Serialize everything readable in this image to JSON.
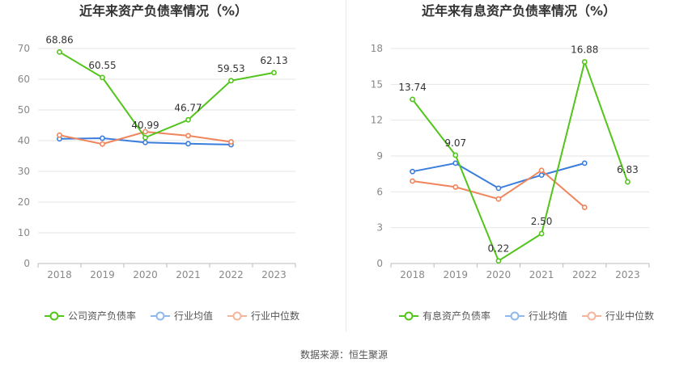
{
  "source": "数据来源：恒生聚源",
  "chart_data": [
    {
      "type": "line",
      "title": "近年来资产负债率情况（%）",
      "categories": [
        "2018",
        "2019",
        "2020",
        "2021",
        "2022",
        "2023"
      ],
      "ylim": [
        0,
        70
      ],
      "yticks": [
        0,
        10,
        20,
        30,
        40,
        50,
        60,
        70
      ],
      "grid": true,
      "legend_position": "bottom",
      "series": [
        {
          "name": "公司资产负债率",
          "color": "#52c41a",
          "labels": true,
          "values": [
            68.86,
            60.55,
            40.99,
            46.77,
            59.53,
            62.13
          ]
        },
        {
          "name": "行业均值",
          "color": "#3b7ddd",
          "labels": false,
          "values": [
            40.6,
            40.8,
            39.4,
            39.0,
            38.7,
            null
          ]
        },
        {
          "name": "行业中位数",
          "color": "#f0845c",
          "labels": false,
          "values": [
            41.8,
            38.9,
            42.9,
            41.6,
            39.6,
            null
          ]
        }
      ]
    },
    {
      "type": "line",
      "title": "近年来有息资产负债率情况（%）",
      "categories": [
        "2018",
        "2019",
        "2020",
        "2021",
        "2022",
        "2023"
      ],
      "ylim": [
        0,
        18
      ],
      "yticks": [
        0,
        3,
        6,
        9,
        12,
        15,
        18
      ],
      "grid": true,
      "legend_position": "bottom",
      "series": [
        {
          "name": "有息资产负债率",
          "color": "#52c41a",
          "labels": true,
          "values": [
            13.74,
            9.07,
            0.22,
            2.5,
            16.88,
            6.83
          ]
        },
        {
          "name": "行业均值",
          "color": "#3b7ddd",
          "labels": false,
          "values": [
            7.7,
            8.4,
            6.3,
            7.4,
            8.4,
            null
          ]
        },
        {
          "name": "行业中位数",
          "color": "#f0845c",
          "labels": false,
          "values": [
            6.9,
            6.4,
            5.4,
            7.8,
            4.7,
            null
          ]
        }
      ]
    }
  ]
}
